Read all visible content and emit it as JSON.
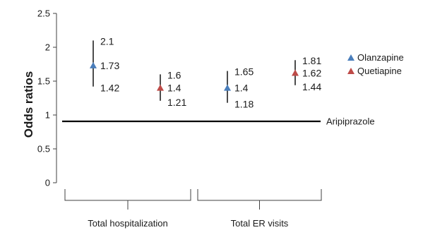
{
  "chart_data": {
    "type": "scatter",
    "ylabel": "Odds ratios",
    "ylim": [
      0,
      2.5
    ],
    "yticks": [
      "0",
      "0.5",
      "1",
      "1.5",
      "2",
      "2.5"
    ],
    "grid": false,
    "legend_position": "right",
    "groups": [
      "Total hospitalization",
      "Total ER visits"
    ],
    "reference": {
      "label": "Aripiprazole",
      "value": 1
    },
    "series": [
      {
        "name": "Olanzapine",
        "color": "#4a7ebb",
        "marker": "triangle",
        "points": [
          {
            "group": "Total hospitalization",
            "value": 1.73,
            "upper": 2.1,
            "lower": 1.42,
            "value_label": "1.73",
            "upper_label": "2.1",
            "lower_label": "1.42"
          },
          {
            "group": "Total ER visits",
            "value": 1.4,
            "upper": 1.65,
            "lower": 1.18,
            "value_label": "1.4",
            "upper_label": "1.65",
            "lower_label": "1.18"
          }
        ]
      },
      {
        "name": "Quetiapine",
        "color": "#be4b48",
        "marker": "triangle",
        "points": [
          {
            "group": "Total hospitalization",
            "value": 1.4,
            "upper": 1.6,
            "lower": 1.21,
            "value_label": "1.4",
            "upper_label": "1.6",
            "lower_label": "1.21"
          },
          {
            "group": "Total ER visits",
            "value": 1.62,
            "upper": 1.81,
            "lower": 1.44,
            "value_label": "1.62",
            "upper_label": "1.81",
            "lower_label": "1.44"
          }
        ]
      }
    ]
  }
}
